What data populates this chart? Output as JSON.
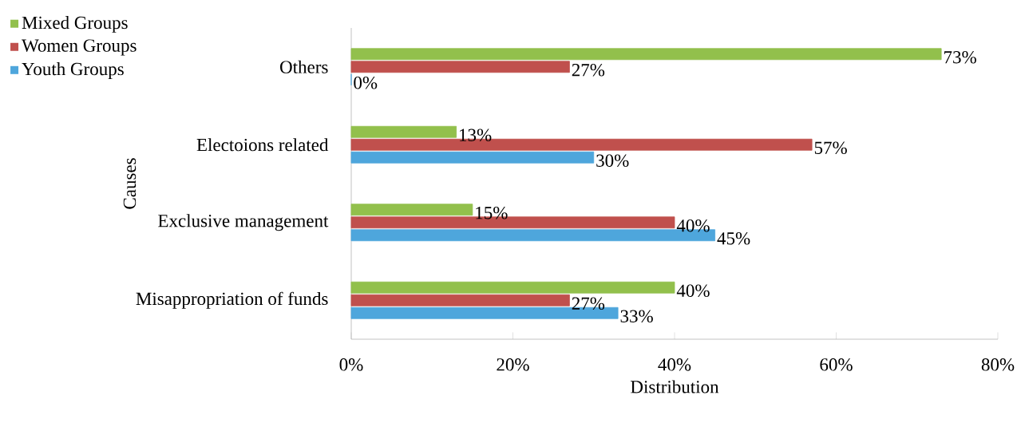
{
  "chart_data": {
    "type": "bar",
    "orientation": "horizontal",
    "xlabel": "Distribution",
    "ylabel": "Causes",
    "categories": [
      "Others",
      "Electoions related",
      "Exclusive management",
      "Misappropriation of funds"
    ],
    "series": [
      {
        "name": "Mixed Groups",
        "color": "#92c04c",
        "values": [
          73,
          13,
          15,
          40
        ],
        "value_labels": [
          "73%",
          "13%",
          "15%",
          "40%"
        ]
      },
      {
        "name": "Women Groups",
        "color": "#c0504d",
        "values": [
          27,
          57,
          40,
          27
        ],
        "value_labels": [
          "27%",
          "57%",
          "40%",
          "27%"
        ]
      },
      {
        "name": "Youth Groups",
        "color": "#4ea6dc",
        "values": [
          0,
          30,
          45,
          33
        ],
        "value_labels": [
          "0%",
          "30%",
          "45%",
          "33%"
        ]
      }
    ],
    "xlim": [
      0,
      80
    ],
    "xticks": [
      {
        "value": 0,
        "label": "0%"
      },
      {
        "value": 20,
        "label": "20%"
      },
      {
        "value": 40,
        "label": "40%"
      },
      {
        "value": 60,
        "label": "60%"
      },
      {
        "value": 80,
        "label": "80%"
      }
    ],
    "legend": "top left",
    "grid": false
  }
}
